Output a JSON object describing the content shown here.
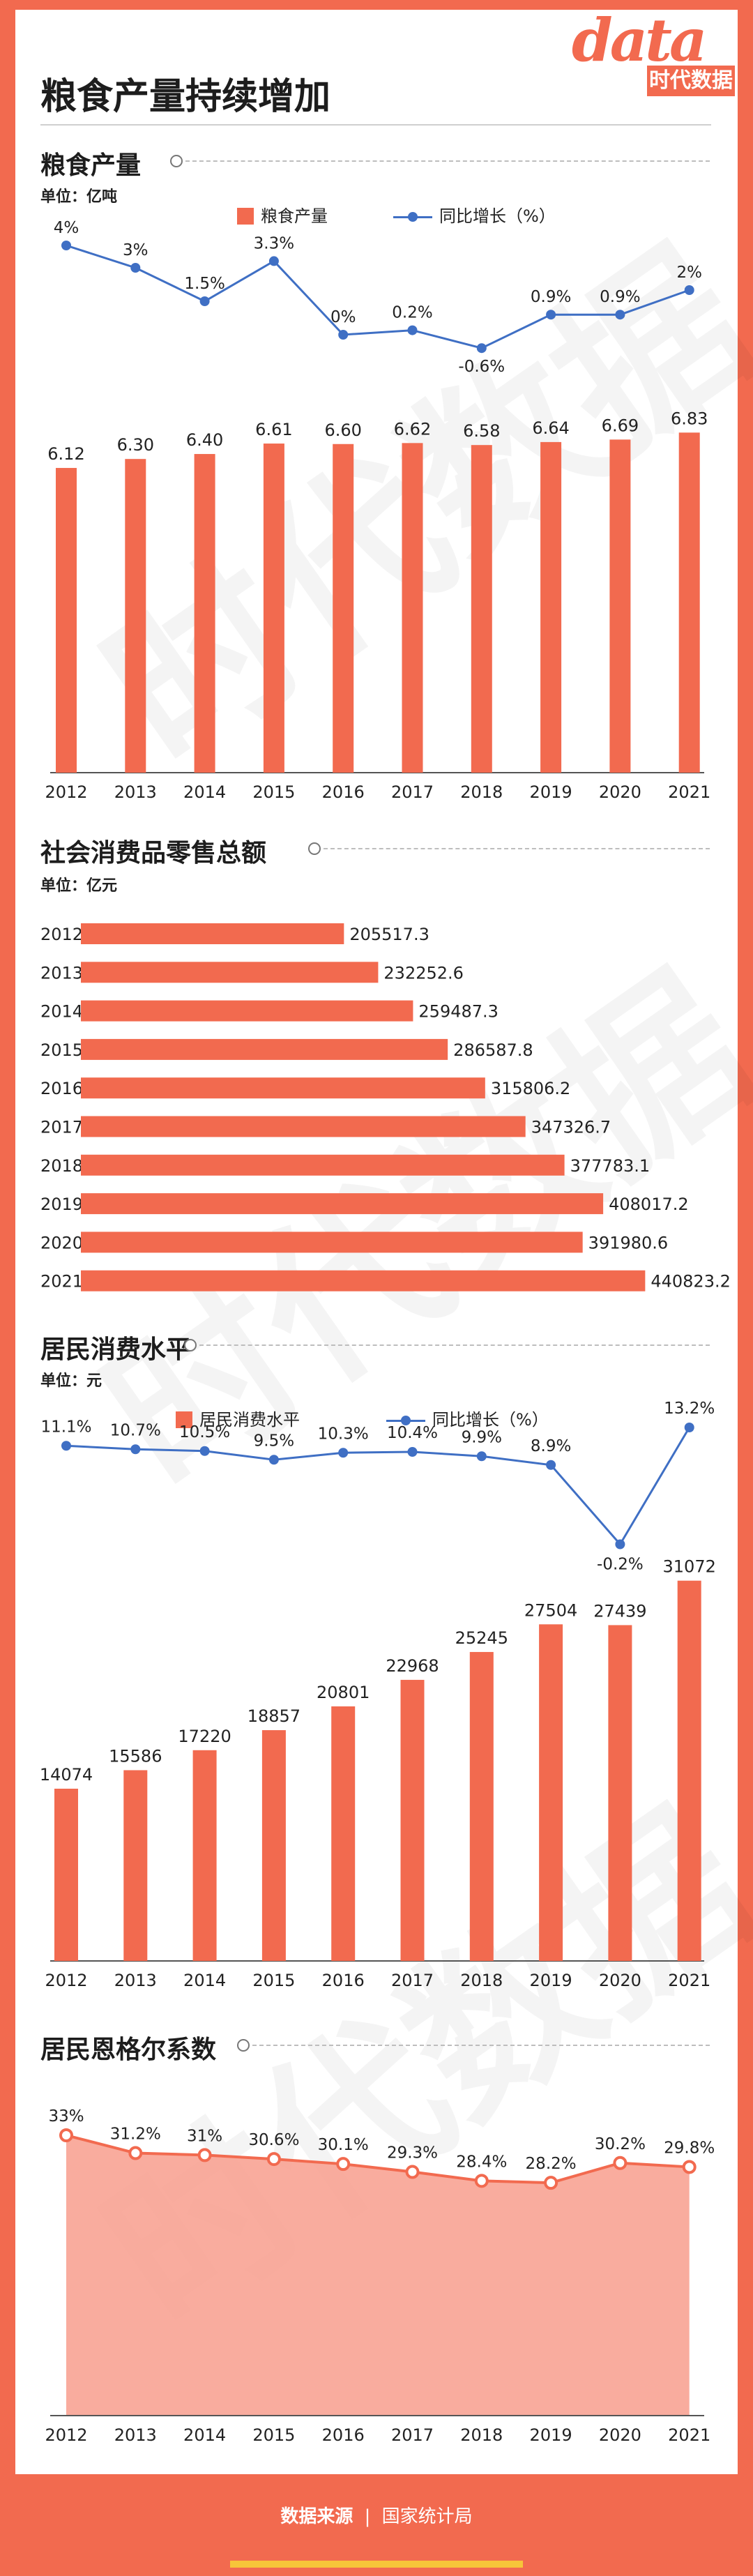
{
  "page": {
    "title": "粮食产量持续增加",
    "logo_text": "data",
    "logo_cn": "时代数据",
    "watermark": "时代数据",
    "footer": {
      "label": "数据来源",
      "separator": "|",
      "source": "国家统计局"
    }
  },
  "colors": {
    "bar": "#f26a4f",
    "line": "#3f6fc4",
    "area": "#f8a393",
    "frame": "#f26a4f",
    "footer_accent": "#f7c53a"
  },
  "sections": {
    "grain": {
      "title": "粮食产量",
      "unit": "单位：亿吨",
      "legend_bar": "粮食产量",
      "legend_line": "同比增长（%）"
    },
    "retail": {
      "title": "社会消费品零售总额",
      "unit": "单位：亿元"
    },
    "consumption": {
      "title": "居民消费水平",
      "unit": "单位：元",
      "legend_bar": "居民消费水平",
      "legend_line": "同比增长（%）"
    },
    "engel": {
      "title": "居民恩格尔系数"
    }
  },
  "chart_data": [
    {
      "id": "grain",
      "type": "bar",
      "title": "粮食产量",
      "ylabel": "亿吨",
      "categories": [
        "2012",
        "2013",
        "2014",
        "2015",
        "2016",
        "2017",
        "2018",
        "2019",
        "2020",
        "2021"
      ],
      "series": [
        {
          "name": "粮食产量",
          "values": [
            6.12,
            6.3,
            6.4,
            6.61,
            6.6,
            6.62,
            6.58,
            6.64,
            6.69,
            6.83
          ],
          "labels": [
            "6.12",
            "6.30",
            "6.40",
            "6.61",
            "6.60",
            "6.62",
            "6.58",
            "6.64",
            "6.69",
            "6.83"
          ]
        },
        {
          "name": "同比增长（%）",
          "type": "line",
          "values": [
            4,
            3,
            1.5,
            3.3,
            0,
            0.2,
            -0.6,
            0.9,
            0.9,
            2
          ],
          "labels": [
            "4%",
            "3%",
            "1.5%",
            "3.3%",
            "0%",
            "0.2%",
            "-0.6%",
            "0.9%",
            "0.9%",
            "2%"
          ]
        }
      ],
      "legend": "top-center"
    },
    {
      "id": "retail",
      "type": "bar",
      "orientation": "horizontal",
      "title": "社会消费品零售总额",
      "ylabel": "亿元",
      "categories": [
        "2012",
        "2013",
        "2014",
        "2015",
        "2016",
        "2017",
        "2018",
        "2019",
        "2020",
        "2021"
      ],
      "values": [
        205517.3,
        232252.6,
        259487.3,
        286587.8,
        315806.2,
        347326.7,
        377783.1,
        408017.2,
        391980.6,
        440823.2
      ],
      "labels": [
        "205517.3",
        "232252.6",
        "259487.3",
        "286587.8",
        "315806.2",
        "347326.7",
        "377783.1",
        "408017.2",
        "391980.6",
        "440823.2"
      ]
    },
    {
      "id": "consumption",
      "type": "bar",
      "title": "居民消费水平",
      "ylabel": "元",
      "categories": [
        "2012",
        "2013",
        "2014",
        "2015",
        "2016",
        "2017",
        "2018",
        "2019",
        "2020",
        "2021"
      ],
      "series": [
        {
          "name": "居民消费水平",
          "values": [
            14074,
            15586,
            17220,
            18857,
            20801,
            22968,
            25245,
            27504,
            27439,
            31072
          ],
          "labels": [
            "14074",
            "15586",
            "17220",
            "18857",
            "20801",
            "22968",
            "25245",
            "27504",
            "27439",
            "31072"
          ]
        },
        {
          "name": "同比增长（%）",
          "type": "line",
          "values": [
            11.1,
            10.7,
            10.5,
            9.5,
            10.3,
            10.4,
            9.9,
            8.9,
            -0.2,
            13.2
          ],
          "labels": [
            "11.1%",
            "10.7%",
            "10.5%",
            "9.5%",
            "10.3%",
            "10.4%",
            "9.9%",
            "8.9%",
            "-0.2%",
            "13.2%"
          ]
        }
      ],
      "legend": "top-center"
    },
    {
      "id": "engel",
      "type": "area",
      "title": "居民恩格尔系数",
      "categories": [
        "2012",
        "2013",
        "2014",
        "2015",
        "2016",
        "2017",
        "2018",
        "2019",
        "2020",
        "2021"
      ],
      "values": [
        33,
        31.2,
        31,
        30.6,
        30.1,
        29.3,
        28.4,
        28.2,
        30.2,
        29.8
      ],
      "labels": [
        "33%",
        "31.2%",
        "31%",
        "30.6%",
        "30.1%",
        "29.3%",
        "28.4%",
        "28.2%",
        "30.2%",
        "29.8%"
      ]
    }
  ]
}
